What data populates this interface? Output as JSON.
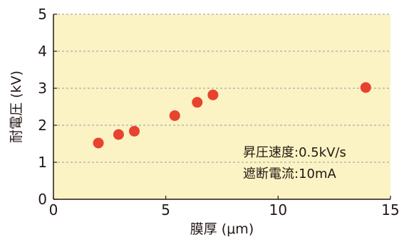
{
  "chart_data": {
    "type": "scatter",
    "xlabel": "膜厚 (μm)",
    "ylabel": "耐電圧 (kV)",
    "xlim": [
      0,
      15
    ],
    "ylim": [
      0,
      5
    ],
    "xticks": [
      "0",
      "5",
      "10",
      "15"
    ],
    "yticks": [
      "0",
      "1",
      "2",
      "3",
      "4",
      "5"
    ],
    "grid": "horizontal dashed",
    "series": [
      {
        "points": [
          {
            "x": 2.0,
            "y": 1.52
          },
          {
            "x": 2.9,
            "y": 1.75
          },
          {
            "x": 3.6,
            "y": 1.84
          },
          {
            "x": 5.4,
            "y": 2.26
          },
          {
            "x": 6.4,
            "y": 2.62
          },
          {
            "x": 7.1,
            "y": 2.82
          },
          {
            "x": 13.9,
            "y": 3.02
          }
        ]
      }
    ],
    "annotations": [
      "昇圧速度:0.5kV/s",
      "遮断電流:10mA"
    ],
    "colors": {
      "background": "#fbf3c4",
      "marker": "#e8432f",
      "grid": "#9a9a9a",
      "axis": "#231815"
    }
  }
}
